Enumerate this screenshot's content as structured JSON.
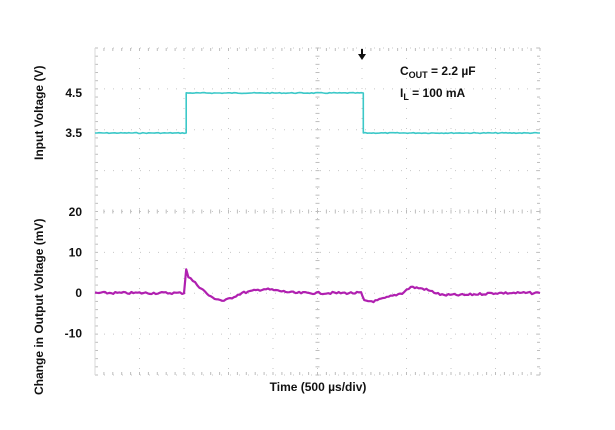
{
  "chart_data": {
    "type": "line",
    "title": "",
    "xlabel": "Time (500 µs/div)",
    "x_divisions": 10,
    "y_divisions": 8,
    "grid": true,
    "grid_style": "dotted",
    "time_per_div_us": 500,
    "annotations": [
      {
        "text": "C_OUT = 2.2 µF",
        "main": "C",
        "sub": "OUT",
        "rest": " = 2.2 µF"
      },
      {
        "text": "I_L = 100 mA",
        "main": "I",
        "sub": "L",
        "rest": " = 100 mA"
      }
    ],
    "trigger_marker": {
      "x_div": 6.0,
      "symbol": "down-arrow"
    },
    "series": [
      {
        "name": "Input Voltage",
        "ylabel": "Input Voltage (V)",
        "unit": "V",
        "color": "#3cc8c8",
        "tick_labels": [
          "4.5",
          "3.5"
        ],
        "tick_values": [
          4.5,
          3.5
        ],
        "x_div": [
          0,
          2.05,
          2.05,
          6.03,
          6.03,
          10
        ],
        "values": [
          3.5,
          3.5,
          4.5,
          4.5,
          3.5,
          3.5
        ]
      },
      {
        "name": "Change in Output Voltage",
        "ylabel": "Change in Output Voltage (mV)",
        "unit": "mV",
        "color": "#b020b0",
        "tick_labels": [
          "20",
          "10",
          "0",
          "-10"
        ],
        "tick_values": [
          20,
          10,
          0,
          -10
        ],
        "x_div": [
          0,
          1.0,
          2.0,
          2.05,
          2.1,
          2.3,
          2.6,
          2.9,
          3.3,
          3.8,
          4.5,
          5.2,
          5.98,
          6.05,
          6.3,
          6.6,
          6.9,
          7.1,
          7.4,
          7.8,
          8.3,
          9.0,
          10
        ],
        "values": [
          0,
          0,
          0,
          6,
          4,
          2,
          -1,
          -2,
          0,
          1,
          0,
          0,
          0,
          -2,
          -2,
          -1,
          0,
          1.5,
          1,
          -0.5,
          -0.5,
          0,
          0
        ]
      }
    ]
  }
}
